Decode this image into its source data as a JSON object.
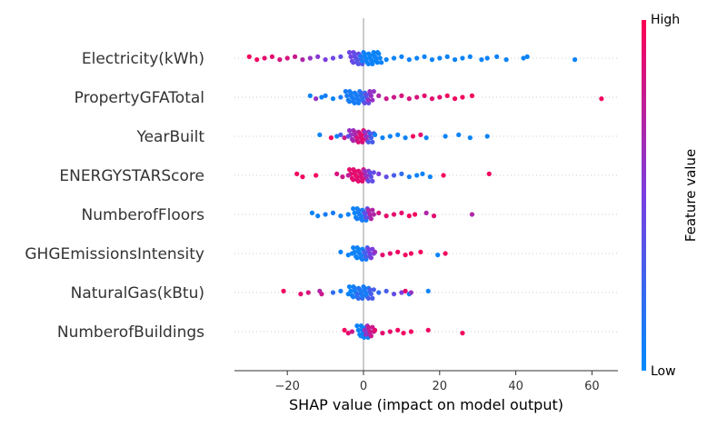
{
  "chart_data": {
    "type": "scatter",
    "subtype": "shap-beeswarm",
    "xlabel": "SHAP value (impact on model output)",
    "xlim": [
      -34,
      67
    ],
    "xticks": [
      -20,
      0,
      20,
      40,
      60
    ],
    "xtick_labels": [
      "−20",
      "0",
      "20",
      "40",
      "60"
    ],
    "grid": "dotted row guides",
    "colorbar": {
      "title": "Feature value",
      "high_label": "High",
      "low_label": "Low",
      "high_color": "#ff0052",
      "low_color": "#008bfb"
    },
    "features": [
      {
        "name": "Electricity(kWh)",
        "tail_points": [
          {
            "x": -30,
            "v": 0.95
          },
          {
            "x": -28,
            "v": 0.95
          },
          {
            "x": -26,
            "v": 0.9
          },
          {
            "x": -24,
            "v": 0.9
          },
          {
            "x": -22,
            "v": 0.85
          },
          {
            "x": -20,
            "v": 0.85
          },
          {
            "x": -18,
            "v": 0.8
          },
          {
            "x": -16,
            "v": 0.7
          },
          {
            "x": -14,
            "v": 0.6
          },
          {
            "x": -12,
            "v": 0.55
          },
          {
            "x": -10,
            "v": 0.5
          },
          {
            "x": -8,
            "v": 0.45
          },
          {
            "x": -6,
            "v": 0.4
          },
          {
            "x": 6,
            "v": 0.05
          },
          {
            "x": 8,
            "v": 0.05
          },
          {
            "x": 10,
            "v": 0.05
          },
          {
            "x": 12,
            "v": 0.05
          },
          {
            "x": 14,
            "v": 0.05
          },
          {
            "x": 16,
            "v": 0.05
          },
          {
            "x": 18,
            "v": 0.05
          },
          {
            "x": 20,
            "v": 0.05
          },
          {
            "x": 22,
            "v": 0.05
          },
          {
            "x": 24,
            "v": 0.05
          },
          {
            "x": 26,
            "v": 0.05
          },
          {
            "x": 28,
            "v": 0.05
          },
          {
            "x": 31,
            "v": 0.05
          },
          {
            "x": 32.5,
            "v": 0.05
          },
          {
            "x": 35,
            "v": 0.05
          },
          {
            "x": 37.5,
            "v": 0.05
          },
          {
            "x": 42,
            "v": 0.05
          },
          {
            "x": 43,
            "v": 0.05
          },
          {
            "x": 55.5,
            "v": 0.05
          }
        ],
        "core_points": [
          {
            "x": -3,
            "v": 0.45
          },
          {
            "x": -2,
            "v": 0.4
          },
          {
            "x": -1,
            "v": 0.35
          },
          {
            "x": 0,
            "v": 0.1
          },
          {
            "x": 1,
            "v": 0.05
          },
          {
            "x": 2,
            "v": 0.05
          },
          {
            "x": 3,
            "v": 0.05
          },
          {
            "x": 4,
            "v": 0.05
          }
        ]
      },
      {
        "name": "PropertyGFATotal",
        "tail_points": [
          {
            "x": -14,
            "v": 0.05
          },
          {
            "x": -12.5,
            "v": 0.6
          },
          {
            "x": -11,
            "v": 0.05
          },
          {
            "x": -10,
            "v": 0.1
          },
          {
            "x": -8,
            "v": 0.05
          },
          {
            "x": -6,
            "v": 0.1
          },
          {
            "x": 4,
            "v": 0.7
          },
          {
            "x": 6,
            "v": 0.8
          },
          {
            "x": 8,
            "v": 0.8
          },
          {
            "x": 10,
            "v": 0.85
          },
          {
            "x": 12,
            "v": 0.85
          },
          {
            "x": 14,
            "v": 0.85
          },
          {
            "x": 16,
            "v": 0.9
          },
          {
            "x": 18,
            "v": 0.9
          },
          {
            "x": 20,
            "v": 0.9
          },
          {
            "x": 22,
            "v": 0.95
          },
          {
            "x": 24,
            "v": 0.95
          },
          {
            "x": 26,
            "v": 0.95
          },
          {
            "x": 28.5,
            "v": 0.95
          },
          {
            "x": 62.5,
            "v": 0.95
          }
        ],
        "core_points": [
          {
            "x": -4,
            "v": 0.1
          },
          {
            "x": -3,
            "v": 0.1
          },
          {
            "x": -2,
            "v": 0.1
          },
          {
            "x": -1,
            "v": 0.1
          },
          {
            "x": 0,
            "v": 0.2
          },
          {
            "x": 1,
            "v": 0.4
          },
          {
            "x": 2,
            "v": 0.6
          }
        ]
      },
      {
        "name": "YearBuilt",
        "tail_points": [
          {
            "x": -11.5,
            "v": 0.05
          },
          {
            "x": -8.5,
            "v": 0.95
          },
          {
            "x": -7,
            "v": 0.05
          },
          {
            "x": -6,
            "v": 0.3
          },
          {
            "x": -5,
            "v": 0.8
          },
          {
            "x": -4,
            "v": 0.4
          },
          {
            "x": 3,
            "v": 0.05
          },
          {
            "x": 5,
            "v": 0.05
          },
          {
            "x": 7,
            "v": 0.05
          },
          {
            "x": 9,
            "v": 0.05
          },
          {
            "x": 11,
            "v": 0.05
          },
          {
            "x": 13,
            "v": 0.95
          },
          {
            "x": 15,
            "v": 0.9
          },
          {
            "x": 16.5,
            "v": 0.05
          },
          {
            "x": 21.5,
            "v": 0.05
          },
          {
            "x": 25,
            "v": 0.05
          },
          {
            "x": 28,
            "v": 0.05
          },
          {
            "x": 32.5,
            "v": 0.05
          }
        ],
        "core_points": [
          {
            "x": -3,
            "v": 0.6
          },
          {
            "x": -2,
            "v": 0.7
          },
          {
            "x": -1,
            "v": 0.85
          },
          {
            "x": 0,
            "v": 0.9
          },
          {
            "x": 1,
            "v": 0.6
          },
          {
            "x": 2,
            "v": 0.3
          }
        ]
      },
      {
        "name": "ENERGYSTARScore",
        "tail_points": [
          {
            "x": -17.5,
            "v": 0.95
          },
          {
            "x": -16,
            "v": 0.95
          },
          {
            "x": -12.5,
            "v": 0.95
          },
          {
            "x": -7,
            "v": 0.85
          },
          {
            "x": -5.5,
            "v": 0.8
          },
          {
            "x": -4,
            "v": 0.75
          },
          {
            "x": 4,
            "v": 0.5
          },
          {
            "x": 6,
            "v": 0.4
          },
          {
            "x": 8,
            "v": 0.3
          },
          {
            "x": 10,
            "v": 0.2
          },
          {
            "x": 12,
            "v": 0.1
          },
          {
            "x": 14,
            "v": 0.05
          },
          {
            "x": 15.5,
            "v": 0.05
          },
          {
            "x": 17.5,
            "v": 0.05
          },
          {
            "x": 21,
            "v": 0.95
          },
          {
            "x": 33,
            "v": 0.95
          }
        ],
        "core_points": [
          {
            "x": -3,
            "v": 0.9
          },
          {
            "x": -2,
            "v": 0.9
          },
          {
            "x": -1,
            "v": 0.9
          },
          {
            "x": 0,
            "v": 0.85
          },
          {
            "x": 1,
            "v": 0.6
          },
          {
            "x": 2,
            "v": 0.4
          }
        ]
      },
      {
        "name": "NumberofFloors",
        "tail_points": [
          {
            "x": -13.5,
            "v": 0.05
          },
          {
            "x": -12,
            "v": 0.05
          },
          {
            "x": -10,
            "v": 0.1
          },
          {
            "x": -8,
            "v": 0.1
          },
          {
            "x": -6,
            "v": 0.05
          },
          {
            "x": -4,
            "v": 0.05
          },
          {
            "x": 4,
            "v": 0.85
          },
          {
            "x": 6,
            "v": 0.9
          },
          {
            "x": 8,
            "v": 0.9
          },
          {
            "x": 10,
            "v": 0.9
          },
          {
            "x": 12,
            "v": 0.95
          },
          {
            "x": 13.5,
            "v": 0.95
          },
          {
            "x": 16.5,
            "v": 0.7
          },
          {
            "x": 18.5,
            "v": 0.9
          },
          {
            "x": 28.5,
            "v": 0.7
          }
        ],
        "core_points": [
          {
            "x": -2,
            "v": 0.05
          },
          {
            "x": -1,
            "v": 0.1
          },
          {
            "x": 0,
            "v": 0.1
          },
          {
            "x": 1,
            "v": 0.4
          },
          {
            "x": 2,
            "v": 0.7
          }
        ]
      },
      {
        "name": "GHGEmissionsIntensity",
        "tail_points": [
          {
            "x": -6,
            "v": 0.05
          },
          {
            "x": -4,
            "v": 0.05
          },
          {
            "x": -3,
            "v": 0.05
          },
          {
            "x": 3,
            "v": 0.6
          },
          {
            "x": 5,
            "v": 0.9
          },
          {
            "x": 7,
            "v": 0.9
          },
          {
            "x": 9,
            "v": 0.95
          },
          {
            "x": 11,
            "v": 0.95
          },
          {
            "x": 12.5,
            "v": 0.95
          },
          {
            "x": 15,
            "v": 0.95
          },
          {
            "x": 19.5,
            "v": 0.05
          },
          {
            "x": 21.5,
            "v": 0.95
          }
        ],
        "core_points": [
          {
            "x": -2,
            "v": 0.05
          },
          {
            "x": -1,
            "v": 0.05
          },
          {
            "x": 0,
            "v": 0.1
          },
          {
            "x": 1,
            "v": 0.3
          },
          {
            "x": 2,
            "v": 0.5
          }
        ]
      },
      {
        "name": "NaturalGas(kBtu)",
        "tail_points": [
          {
            "x": -21,
            "v": 0.95
          },
          {
            "x": -16.5,
            "v": 0.9
          },
          {
            "x": -14.5,
            "v": 0.85
          },
          {
            "x": -11.5,
            "v": 0.7
          },
          {
            "x": -11,
            "v": 0.8
          },
          {
            "x": -8,
            "v": 0.2
          },
          {
            "x": -6,
            "v": 0.1
          },
          {
            "x": -4,
            "v": 0.05
          },
          {
            "x": 4,
            "v": 0.2
          },
          {
            "x": 6,
            "v": 0.3
          },
          {
            "x": 8,
            "v": 0.4
          },
          {
            "x": 10,
            "v": 0.5
          },
          {
            "x": 11,
            "v": 0.9
          },
          {
            "x": 12,
            "v": 0.05
          },
          {
            "x": 12.5,
            "v": 0.6
          },
          {
            "x": 17,
            "v": 0.05
          }
        ],
        "core_points": [
          {
            "x": -3,
            "v": 0.05
          },
          {
            "x": -2,
            "v": 0.1
          },
          {
            "x": -1,
            "v": 0.2
          },
          {
            "x": 0,
            "v": 0.1
          },
          {
            "x": 1,
            "v": 0.1
          },
          {
            "x": 2,
            "v": 0.3
          }
        ]
      },
      {
        "name": "NumberofBuildings",
        "tail_points": [
          {
            "x": -5,
            "v": 0.95
          },
          {
            "x": -4,
            "v": 0.9
          },
          {
            "x": -3,
            "v": 0.8
          },
          {
            "x": 3,
            "v": 0.9
          },
          {
            "x": 5,
            "v": 0.9
          },
          {
            "x": 7,
            "v": 0.9
          },
          {
            "x": 9,
            "v": 0.95
          },
          {
            "x": 10.5,
            "v": 0.95
          },
          {
            "x": 12.5,
            "v": 0.95
          },
          {
            "x": 17,
            "v": 0.95
          },
          {
            "x": 26,
            "v": 0.95
          }
        ],
        "core_points": [
          {
            "x": -1,
            "v": 0.05
          },
          {
            "x": 0,
            "v": 0.05
          },
          {
            "x": 0.5,
            "v": 0.05
          },
          {
            "x": 1,
            "v": 0.6
          },
          {
            "x": 2,
            "v": 0.8
          }
        ]
      }
    ]
  }
}
